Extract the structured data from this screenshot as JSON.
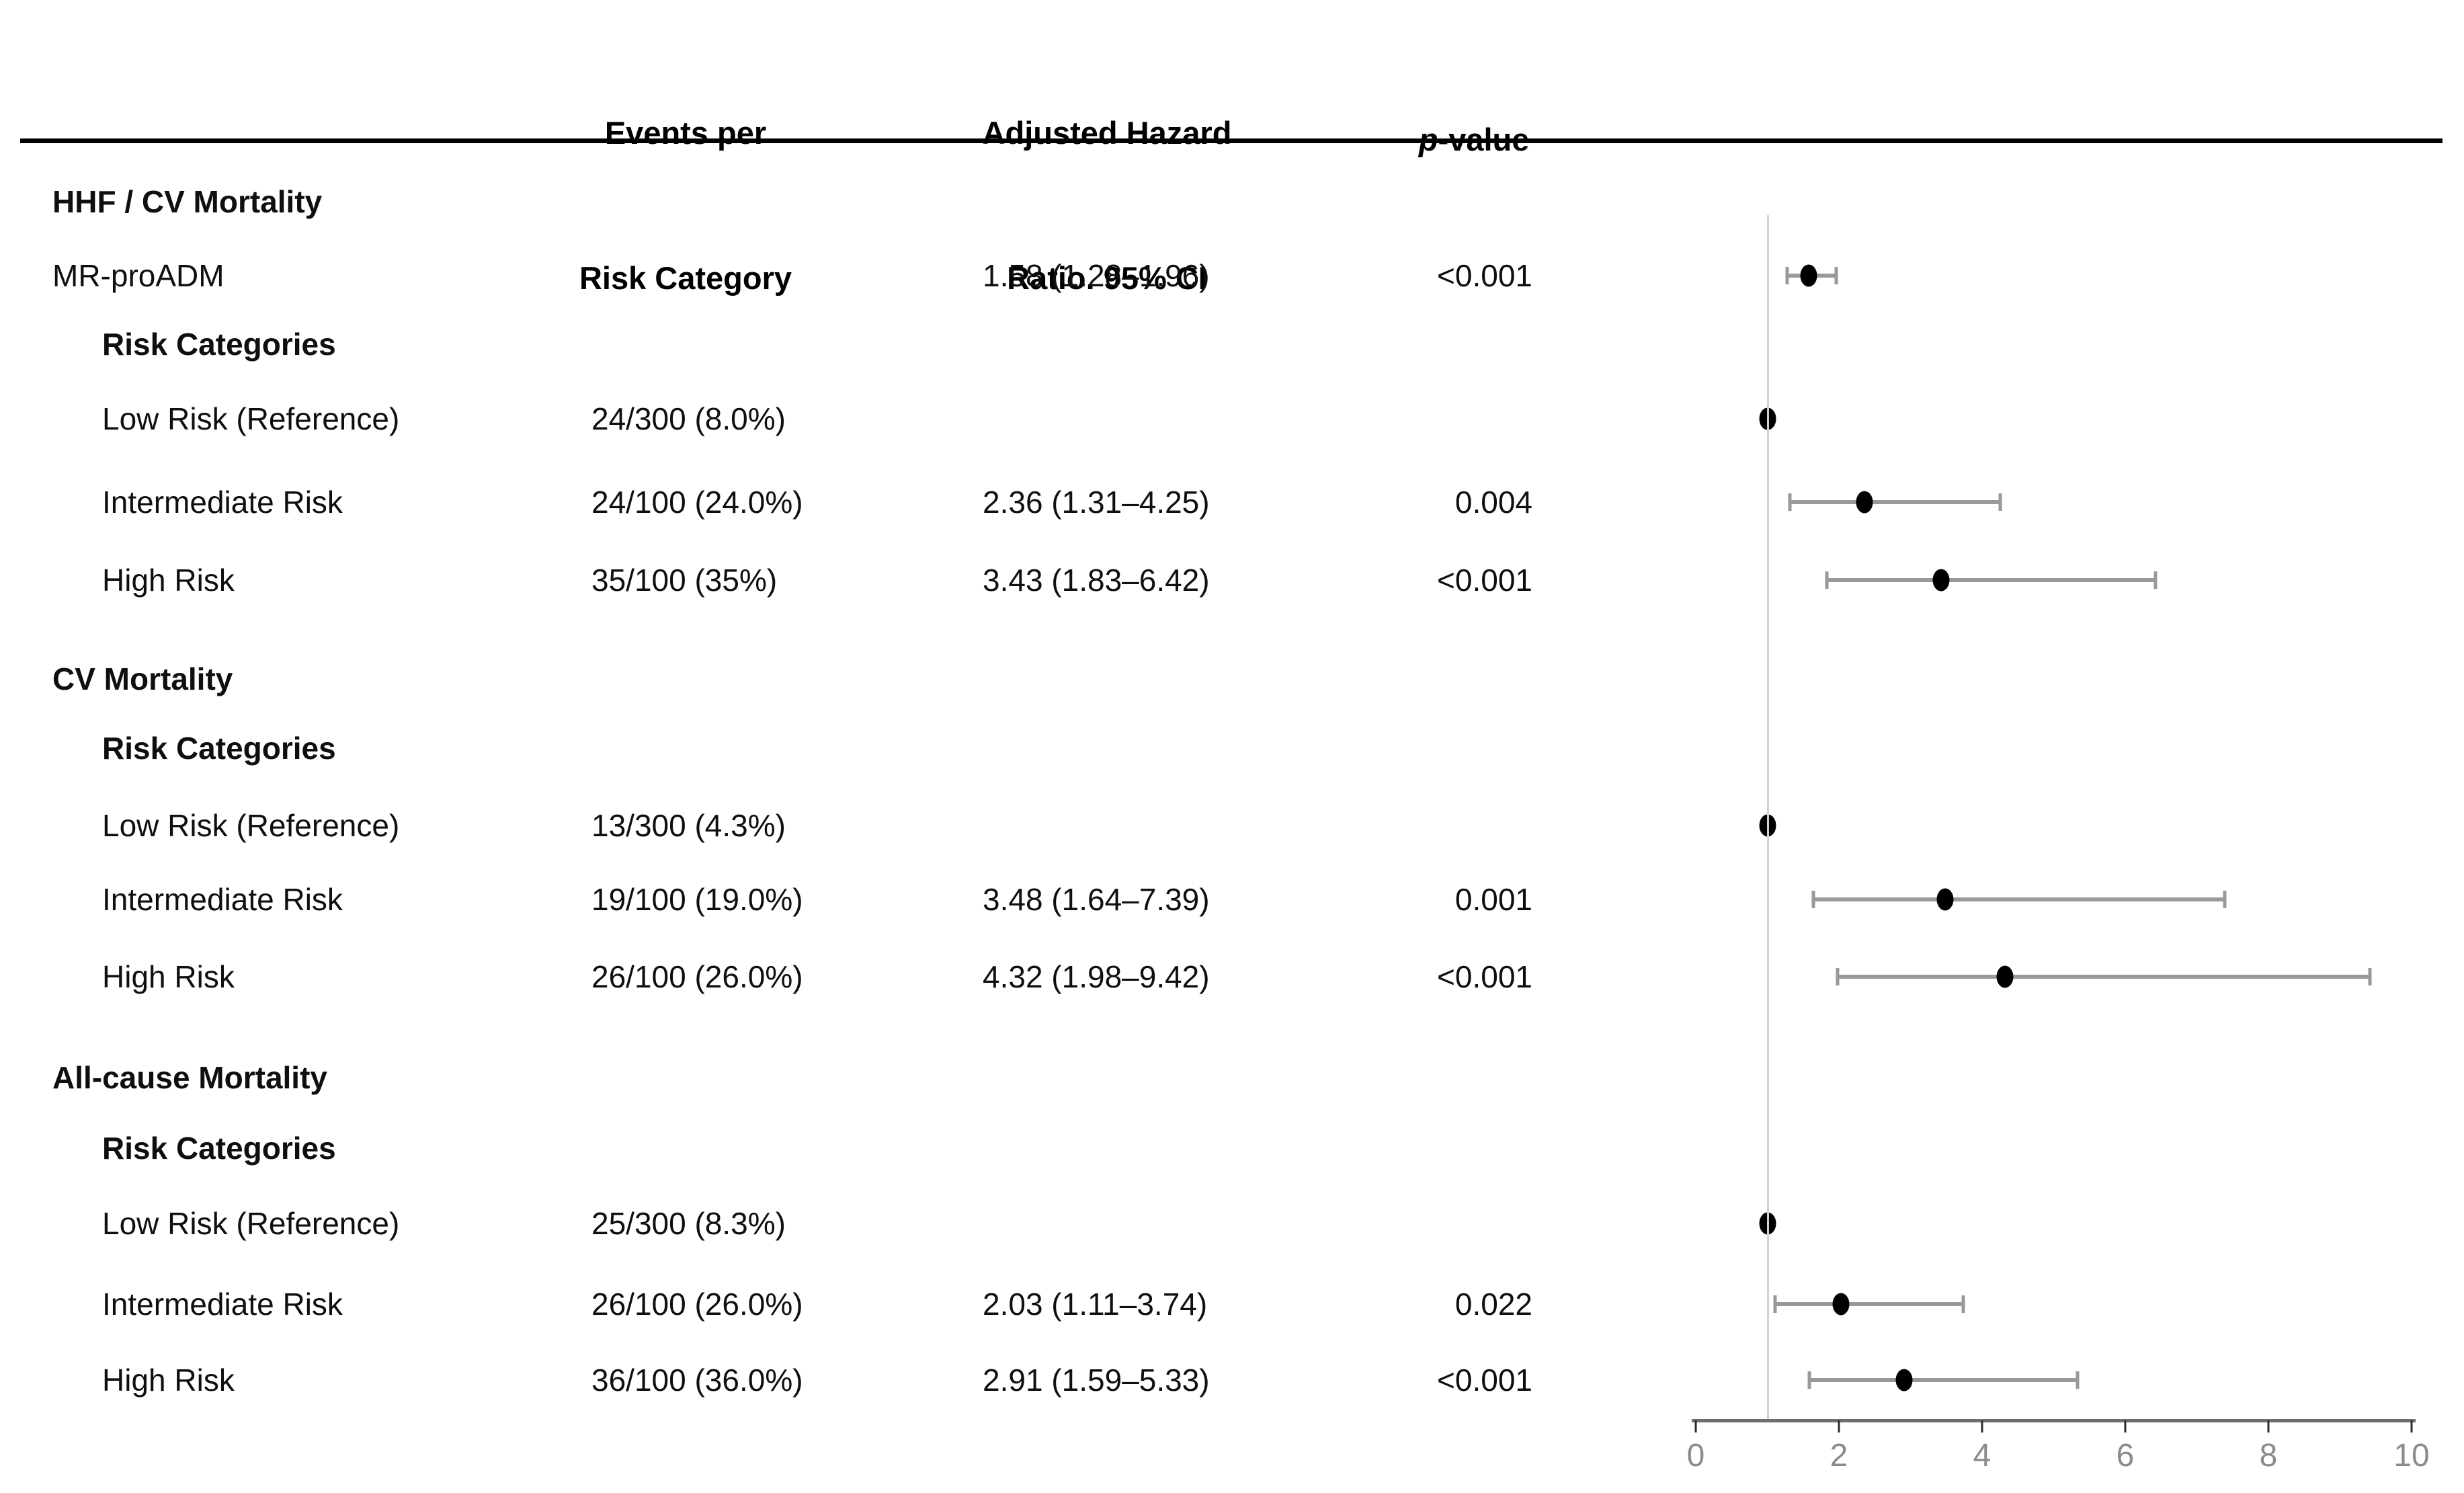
{
  "header": {
    "events_line1": "Events per",
    "events_line2": "Risk Category",
    "hr_line1": "Adjusted Hazard",
    "hr_line2": "Ratio. 95% CI",
    "p_italic": "p",
    "p_rest": "-value"
  },
  "chart_data": {
    "type": "forest",
    "x_range": [
      0,
      10
    ],
    "x_ticks": [
      0,
      2,
      4,
      6,
      8,
      10
    ],
    "reference_value": 1,
    "legend": "none",
    "grid": "off",
    "colors": {
      "marker": "#000000",
      "ci": "#999999",
      "reference_line": "#d2d2d2",
      "axis": "#6e6e6e",
      "axis_labels": "#8b8b8b"
    },
    "rows": [
      {
        "label": "HHF / CV Mortality",
        "indent": 0,
        "bold": true,
        "events": null,
        "hr": null,
        "p": null,
        "marker": null,
        "est": null,
        "lo": null,
        "hi": null
      },
      {
        "label": "MR-proADM",
        "indent": 0,
        "bold": false,
        "events": null,
        "hr": "1.58 (1.28–1.96)",
        "p": "<0.001",
        "marker": "bar",
        "est": 1.58,
        "lo": 1.28,
        "hi": 1.96
      },
      {
        "label": "Risk Categories",
        "indent": 1,
        "bold": true,
        "events": null,
        "hr": null,
        "p": null,
        "marker": null,
        "est": null,
        "lo": null,
        "hi": null
      },
      {
        "label": "Low Risk (Reference)",
        "indent": 1,
        "bold": false,
        "events": "24/300 (8.0%)",
        "hr": null,
        "p": null,
        "marker": "dot",
        "est": 1.0,
        "lo": null,
        "hi": null
      },
      {
        "label": "Intermediate Risk",
        "indent": 1,
        "bold": false,
        "events": "24/100 (24.0%)",
        "hr": "2.36 (1.31–4.25)",
        "p": "0.004",
        "marker": "bar",
        "est": 2.36,
        "lo": 1.31,
        "hi": 4.25
      },
      {
        "label": "High Risk",
        "indent": 1,
        "bold": false,
        "events": "35/100 (35%)",
        "hr": "3.43 (1.83–6.42)",
        "p": "<0.001",
        "marker": "bar",
        "est": 3.43,
        "lo": 1.83,
        "hi": 6.42
      },
      {
        "label": "CV Mortality",
        "indent": 0,
        "bold": true,
        "events": null,
        "hr": null,
        "p": null,
        "marker": null,
        "est": null,
        "lo": null,
        "hi": null
      },
      {
        "label": "Risk Categories",
        "indent": 1,
        "bold": true,
        "events": null,
        "hr": null,
        "p": null,
        "marker": null,
        "est": null,
        "lo": null,
        "hi": null
      },
      {
        "label": "Low Risk (Reference)",
        "indent": 1,
        "bold": false,
        "events": "13/300 (4.3%)",
        "hr": null,
        "p": null,
        "marker": "dot",
        "est": 1.0,
        "lo": null,
        "hi": null
      },
      {
        "label": "Intermediate Risk",
        "indent": 1,
        "bold": false,
        "events": "19/100 (19.0%)",
        "hr": "3.48 (1.64–7.39)",
        "p": "0.001",
        "marker": "bar",
        "est": 3.48,
        "lo": 1.64,
        "hi": 7.39
      },
      {
        "label": "High Risk",
        "indent": 1,
        "bold": false,
        "events": "26/100 (26.0%)",
        "hr": "4.32 (1.98–9.42)",
        "p": "<0.001",
        "marker": "bar",
        "est": 4.32,
        "lo": 1.98,
        "hi": 9.42
      },
      {
        "label": "All-cause Mortality",
        "indent": 0,
        "bold": true,
        "events": null,
        "hr": null,
        "p": null,
        "marker": null,
        "est": null,
        "lo": null,
        "hi": null
      },
      {
        "label": "Risk Categories",
        "indent": 1,
        "bold": true,
        "events": null,
        "hr": null,
        "p": null,
        "marker": null,
        "est": null,
        "lo": null,
        "hi": null
      },
      {
        "label": "Low Risk (Reference)",
        "indent": 1,
        "bold": false,
        "events": "25/300 (8.3%)",
        "hr": null,
        "p": null,
        "marker": "dot",
        "est": 1.0,
        "lo": null,
        "hi": null
      },
      {
        "label": "Intermediate Risk",
        "indent": 1,
        "bold": false,
        "events": "26/100 (26.0%)",
        "hr": "2.03 (1.11–3.74)",
        "p": "0.022",
        "marker": "bar",
        "est": 2.03,
        "lo": 1.11,
        "hi": 3.74
      },
      {
        "label": "High Risk",
        "indent": 1,
        "bold": false,
        "events": "36/100 (36.0%)",
        "hr": "2.91 (1.59–5.33)",
        "p": "<0.001",
        "marker": "bar",
        "est": 2.91,
        "lo": 1.59,
        "hi": 5.33
      }
    ]
  }
}
